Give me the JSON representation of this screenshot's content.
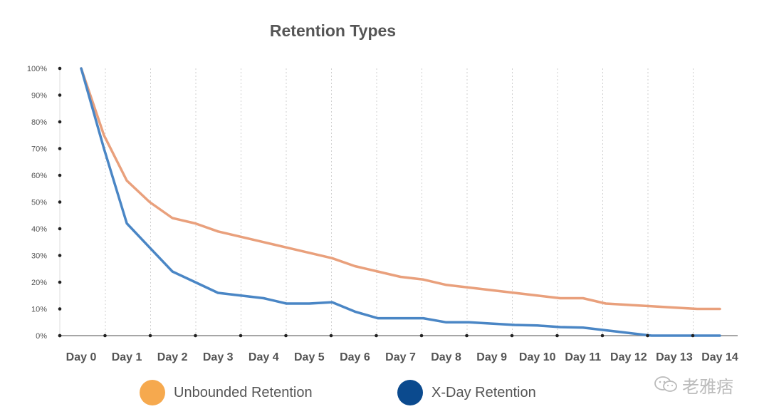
{
  "chart_data": {
    "type": "line",
    "title": "Retention Types",
    "categories": [
      "Day 0",
      "Day 1",
      "Day 2",
      "Day 3",
      "Day 4",
      "Day 5",
      "Day 6",
      "Day 7",
      "Day 8",
      "Day 9",
      "Day 10",
      "Day 11",
      "Day 12",
      "Day 13",
      "Day 14"
    ],
    "yticks": [
      "0%",
      "10%",
      "20%",
      "30%",
      "40%",
      "50%",
      "60%",
      "70%",
      "80%",
      "90%",
      "100%"
    ],
    "ylim": [
      0,
      100
    ],
    "grid": "vertical dashed",
    "legend_position": "bottom",
    "series": [
      {
        "name": "Unbounded Retention",
        "color": "#E9A07C",
        "legend_color": "#F6A94E",
        "x": [
          0,
          0.5,
          1.0,
          1.5,
          2.0,
          2.5,
          3.0,
          3.5,
          4.0,
          4.5,
          5.0,
          5.5,
          6.0,
          6.5,
          7.0,
          7.5,
          8.0,
          8.5,
          9.0,
          9.5,
          10.0,
          10.5,
          11.0,
          11.5,
          12.0,
          12.5,
          13.0,
          13.5,
          14.0
        ],
        "values": [
          100,
          75,
          58,
          50,
          44,
          42,
          39,
          37,
          35,
          33,
          31,
          29,
          26,
          24,
          22,
          21,
          19,
          18,
          17,
          16,
          15,
          14,
          14,
          12,
          11.5,
          11,
          10.5,
          10,
          10
        ]
      },
      {
        "name": "X-Day Retention",
        "color": "#4A86C5",
        "legend_color": "#0B4A8E",
        "x": [
          0,
          0.5,
          1.0,
          1.5,
          2.0,
          2.5,
          3.0,
          3.5,
          4.0,
          4.5,
          5.0,
          5.5,
          6.0,
          6.5,
          7.0,
          7.5,
          8.0,
          8.5,
          9.0,
          9.5,
          10.0,
          10.5,
          11.0,
          11.5,
          12.0,
          12.5,
          13.0,
          13.5,
          14.0
        ],
        "values": [
          100,
          70,
          42,
          33,
          24,
          20,
          16,
          15,
          14,
          12,
          12,
          12.5,
          9,
          6.5,
          6.5,
          6.5,
          5,
          5,
          4.5,
          4,
          3.8,
          3.2,
          3,
          2,
          1,
          0,
          0,
          0,
          0
        ]
      }
    ]
  },
  "watermark": {
    "text": "老雅痞",
    "icon": "wechat-icon"
  }
}
